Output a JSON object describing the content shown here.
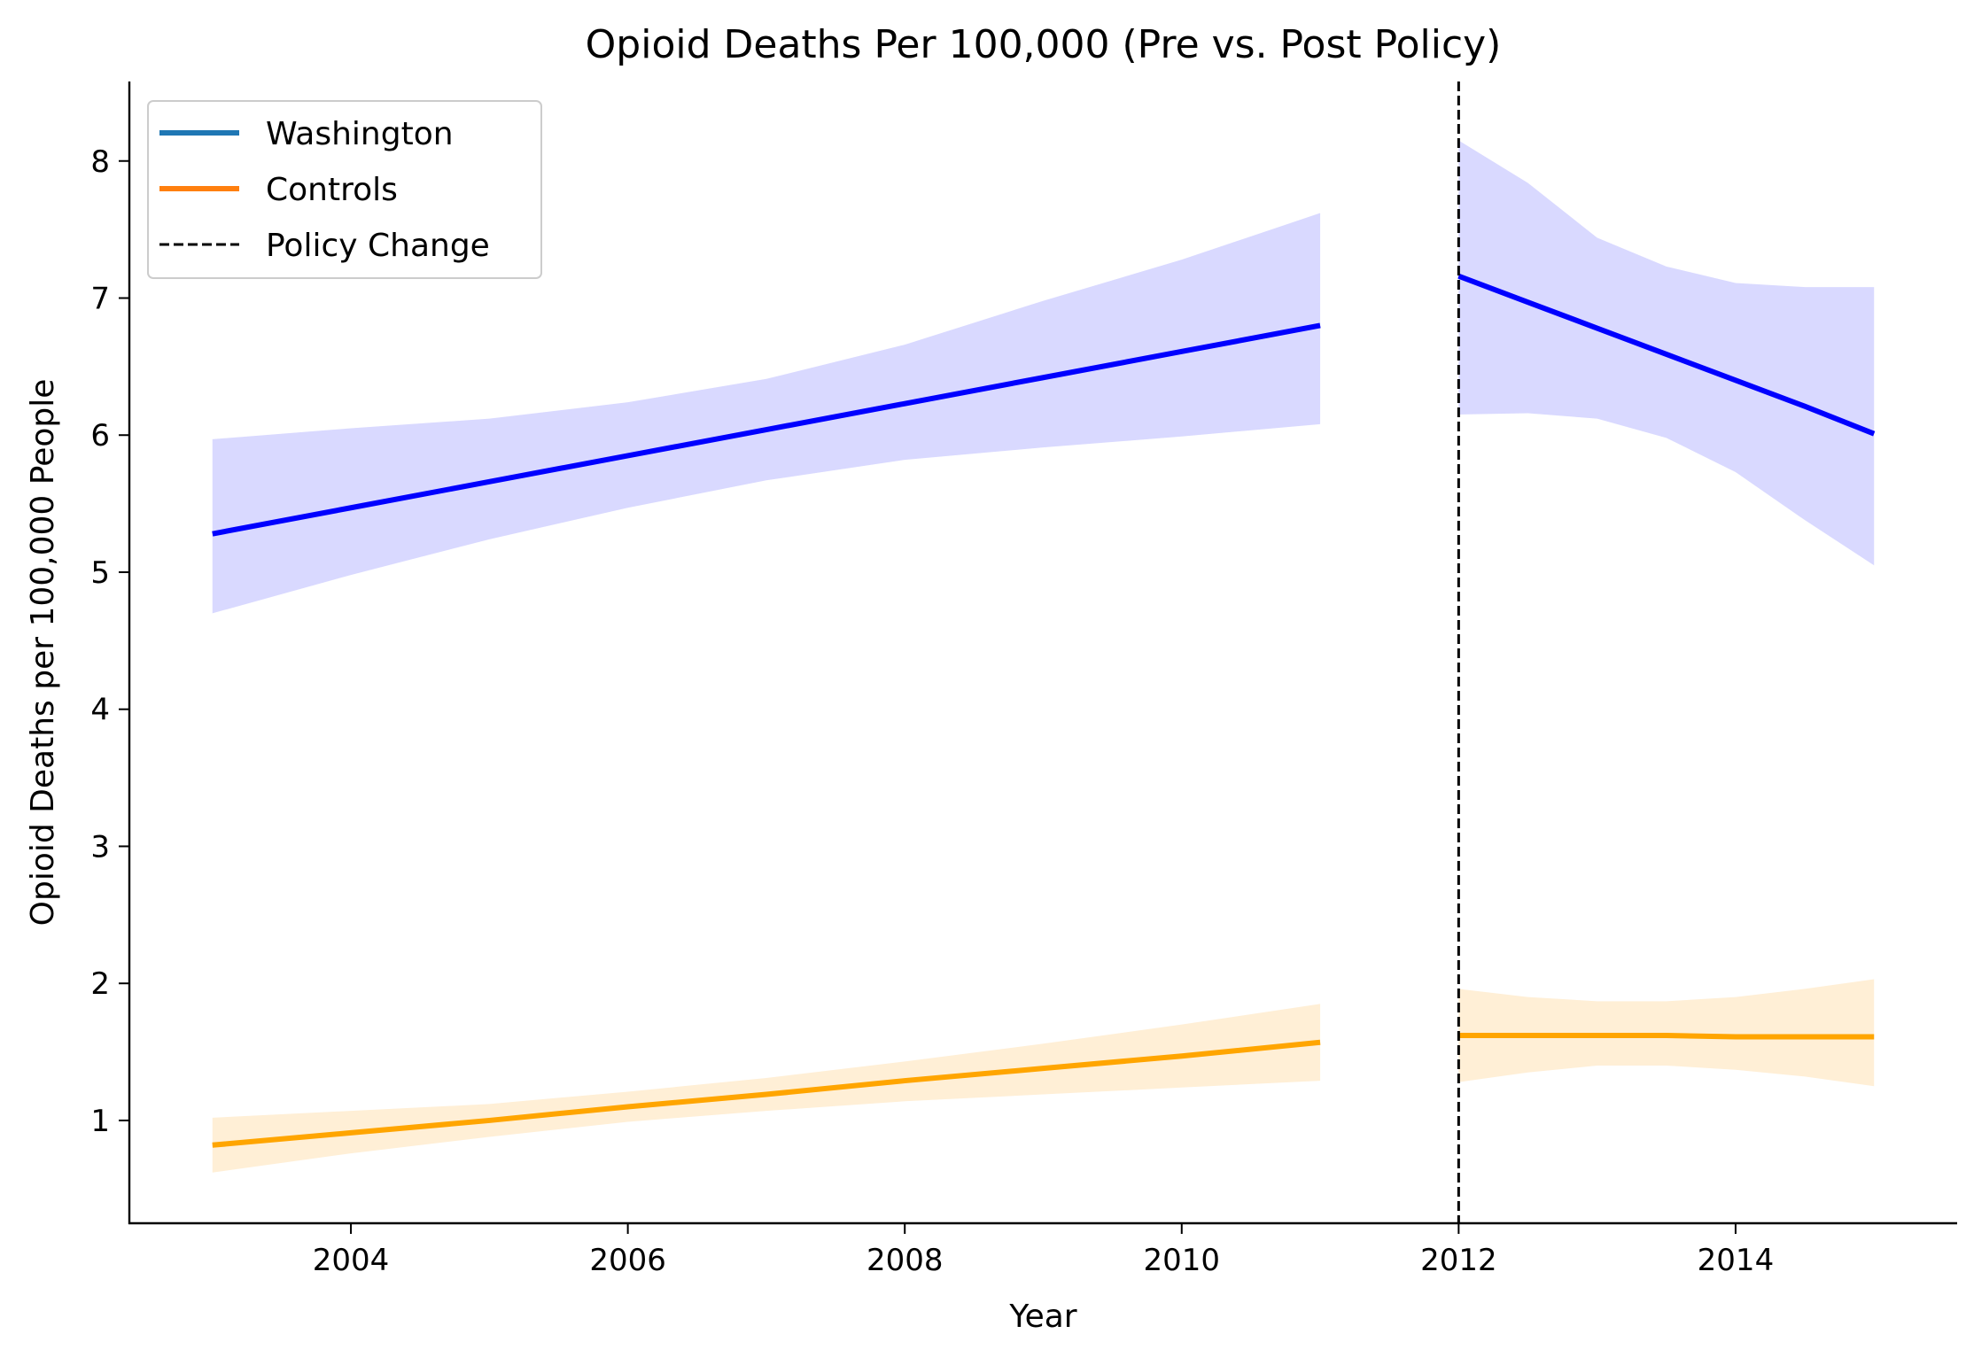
{
  "chart_data": {
    "type": "line",
    "title": "Opioid Deaths Per 100,000 (Pre vs. Post Policy)",
    "xlabel": "Year",
    "ylabel": "Opioid Deaths per 100,000 People",
    "xlim": [
      2002.4,
      2015.6
    ],
    "ylim": [
      0.25,
      8.58
    ],
    "x_ticks": [
      2004,
      2006,
      2008,
      2010,
      2012,
      2014
    ],
    "y_ticks": [
      1,
      2,
      3,
      4,
      5,
      6,
      7,
      8
    ],
    "grid": false,
    "legend_position": "top-left",
    "legend": [
      {
        "label": "Washington",
        "color": "#1f77b4",
        "style": "solid"
      },
      {
        "label": "Controls",
        "color": "#ff7f0e",
        "style": "solid"
      },
      {
        "label": "Policy Change",
        "color": "#000000",
        "style": "dashed"
      }
    ],
    "series": [
      {
        "color": "#0000ff",
        "band_color": "#d9d9ff",
        "segments": [
          {
            "x": [
              2003,
              2004,
              2005,
              2006,
              2007,
              2008,
              2009,
              2010,
              2011
            ],
            "y": [
              5.28,
              5.47,
              5.66,
              5.85,
              6.04,
              6.23,
              6.42,
              6.61,
              6.8
            ],
            "lower": [
              4.7,
              4.98,
              5.24,
              5.47,
              5.67,
              5.82,
              5.91,
              5.99,
              6.08
            ],
            "upper": [
              5.97,
              6.05,
              6.12,
              6.24,
              6.41,
              6.66,
              6.98,
              7.28,
              7.62
            ]
          },
          {
            "x": [
              2012,
              2012.5,
              2013,
              2013.5,
              2014,
              2014.5,
              2015
            ],
            "y": [
              7.16,
              6.97,
              6.78,
              6.59,
              6.4,
              6.21,
              6.01
            ],
            "lower": [
              6.15,
              6.16,
              6.12,
              5.98,
              5.73,
              5.38,
              5.05
            ],
            "upper": [
              8.15,
              7.84,
              7.44,
              7.23,
              7.11,
              7.08,
              7.08
            ]
          }
        ]
      },
      {
        "color": "#ffa500",
        "band_color": "#ffefd6",
        "segments": [
          {
            "x": [
              2003,
              2004,
              2005,
              2006,
              2007,
              2008,
              2009,
              2010,
              2011
            ],
            "y": [
              0.82,
              0.91,
              1.0,
              1.1,
              1.19,
              1.29,
              1.38,
              1.47,
              1.57
            ],
            "lower": [
              0.62,
              0.76,
              0.88,
              0.99,
              1.07,
              1.14,
              1.19,
              1.24,
              1.29
            ],
            "upper": [
              1.02,
              1.07,
              1.12,
              1.21,
              1.31,
              1.43,
              1.56,
              1.7,
              1.85
            ]
          },
          {
            "x": [
              2012,
              2012.5,
              2013,
              2013.5,
              2014,
              2014.5,
              2015
            ],
            "y": [
              1.62,
              1.62,
              1.62,
              1.62,
              1.61,
              1.61,
              1.61
            ],
            "lower": [
              1.28,
              1.35,
              1.4,
              1.4,
              1.37,
              1.32,
              1.25
            ],
            "upper": [
              1.96,
              1.9,
              1.87,
              1.87,
              1.9,
              1.96,
              2.03
            ]
          }
        ]
      }
    ],
    "reference_line": {
      "x": 2012,
      "color": "#000000",
      "style": "dashed"
    }
  }
}
